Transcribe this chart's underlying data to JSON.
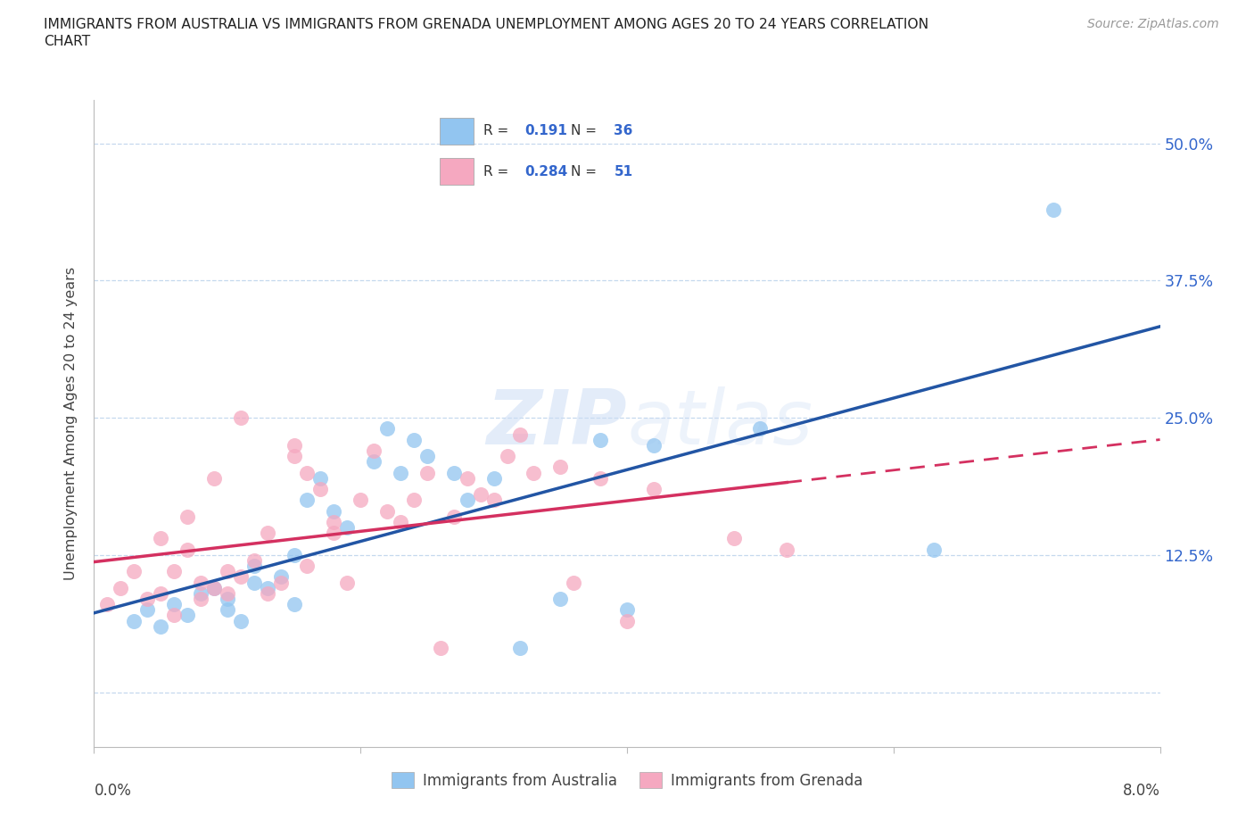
{
  "title_line1": "IMMIGRANTS FROM AUSTRALIA VS IMMIGRANTS FROM GRENADA UNEMPLOYMENT AMONG AGES 20 TO 24 YEARS CORRELATION",
  "title_line2": "CHART",
  "source": "Source: ZipAtlas.com",
  "ylabel": "Unemployment Among Ages 20 to 24 years",
  "xlim": [
    0.0,
    0.08
  ],
  "ylim": [
    -0.05,
    0.54
  ],
  "yticks": [
    0.0,
    0.125,
    0.25,
    0.375,
    0.5
  ],
  "ytick_labels": [
    "",
    "12.5%",
    "25.0%",
    "37.5%",
    "50.0%"
  ],
  "R_australia": 0.191,
  "N_australia": 36,
  "R_grenada": 0.284,
  "N_grenada": 51,
  "color_australia": "#92c5f0",
  "color_grenada": "#f5a8c0",
  "line_color_australia": "#2255a4",
  "line_color_grenada": "#d43060",
  "watermark_color": "#ccddf5",
  "australia_x": [
    0.003,
    0.004,
    0.005,
    0.006,
    0.007,
    0.008,
    0.009,
    0.01,
    0.01,
    0.011,
    0.012,
    0.012,
    0.013,
    0.014,
    0.015,
    0.015,
    0.016,
    0.017,
    0.018,
    0.019,
    0.021,
    0.022,
    0.023,
    0.024,
    0.025,
    0.027,
    0.028,
    0.03,
    0.032,
    0.035,
    0.038,
    0.04,
    0.042,
    0.05,
    0.063,
    0.072
  ],
  "australia_y": [
    0.065,
    0.075,
    0.06,
    0.08,
    0.07,
    0.09,
    0.095,
    0.075,
    0.085,
    0.065,
    0.1,
    0.115,
    0.095,
    0.105,
    0.125,
    0.08,
    0.175,
    0.195,
    0.165,
    0.15,
    0.21,
    0.24,
    0.2,
    0.23,
    0.215,
    0.2,
    0.175,
    0.195,
    0.04,
    0.085,
    0.23,
    0.075,
    0.225,
    0.24,
    0.13,
    0.44
  ],
  "grenada_x": [
    0.001,
    0.002,
    0.003,
    0.004,
    0.005,
    0.005,
    0.006,
    0.006,
    0.007,
    0.007,
    0.008,
    0.008,
    0.009,
    0.009,
    0.01,
    0.01,
    0.011,
    0.011,
    0.012,
    0.013,
    0.013,
    0.014,
    0.015,
    0.015,
    0.016,
    0.016,
    0.017,
    0.018,
    0.018,
    0.019,
    0.02,
    0.021,
    0.022,
    0.023,
    0.024,
    0.025,
    0.026,
    0.027,
    0.028,
    0.029,
    0.03,
    0.031,
    0.032,
    0.033,
    0.035,
    0.036,
    0.038,
    0.04,
    0.042,
    0.048,
    0.052
  ],
  "grenada_y": [
    0.08,
    0.095,
    0.11,
    0.085,
    0.09,
    0.14,
    0.11,
    0.07,
    0.13,
    0.16,
    0.1,
    0.085,
    0.095,
    0.195,
    0.11,
    0.09,
    0.105,
    0.25,
    0.12,
    0.145,
    0.09,
    0.1,
    0.215,
    0.225,
    0.2,
    0.115,
    0.185,
    0.155,
    0.145,
    0.1,
    0.175,
    0.22,
    0.165,
    0.155,
    0.175,
    0.2,
    0.04,
    0.16,
    0.195,
    0.18,
    0.175,
    0.215,
    0.235,
    0.2,
    0.205,
    0.1,
    0.195,
    0.065,
    0.185,
    0.14,
    0.13
  ]
}
